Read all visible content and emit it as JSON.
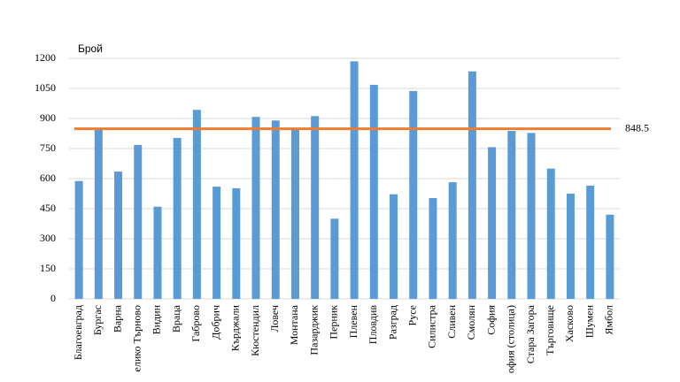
{
  "chart_data": {
    "type": "bar",
    "y_label": "Брой",
    "categories": [
      "Благоевград",
      "Бургас",
      "Варна",
      "елико Търново",
      "Видин",
      "Враца",
      "Габрово",
      "Добрич",
      "Кърджали",
      "Кюстендил",
      "Ловеч",
      "Монтана",
      "Пазарджик",
      "Перник",
      "Плевен",
      "Пловдив",
      "Разград",
      "Русе",
      "Силистра",
      "Сливен",
      "Смолян",
      "София",
      "офия (столица)",
      "Стара Загора",
      "Търговище",
      "Хасково",
      "Шумен",
      "Ямбол"
    ],
    "values": [
      588,
      843,
      635,
      768,
      460,
      803,
      943,
      560,
      552,
      908,
      890,
      843,
      912,
      400,
      1185,
      1068,
      522,
      1037,
      503,
      582,
      1135,
      757,
      838,
      828,
      650,
      525,
      565,
      420
    ],
    "color": "#5b9bd5",
    "reference_value": 848.5,
    "reference_color": "#ed7d31",
    "ylim": [
      0,
      1200
    ],
    "yticks": [
      0,
      150,
      300,
      450,
      600,
      750,
      900,
      1050,
      1200
    ],
    "grid": true
  }
}
